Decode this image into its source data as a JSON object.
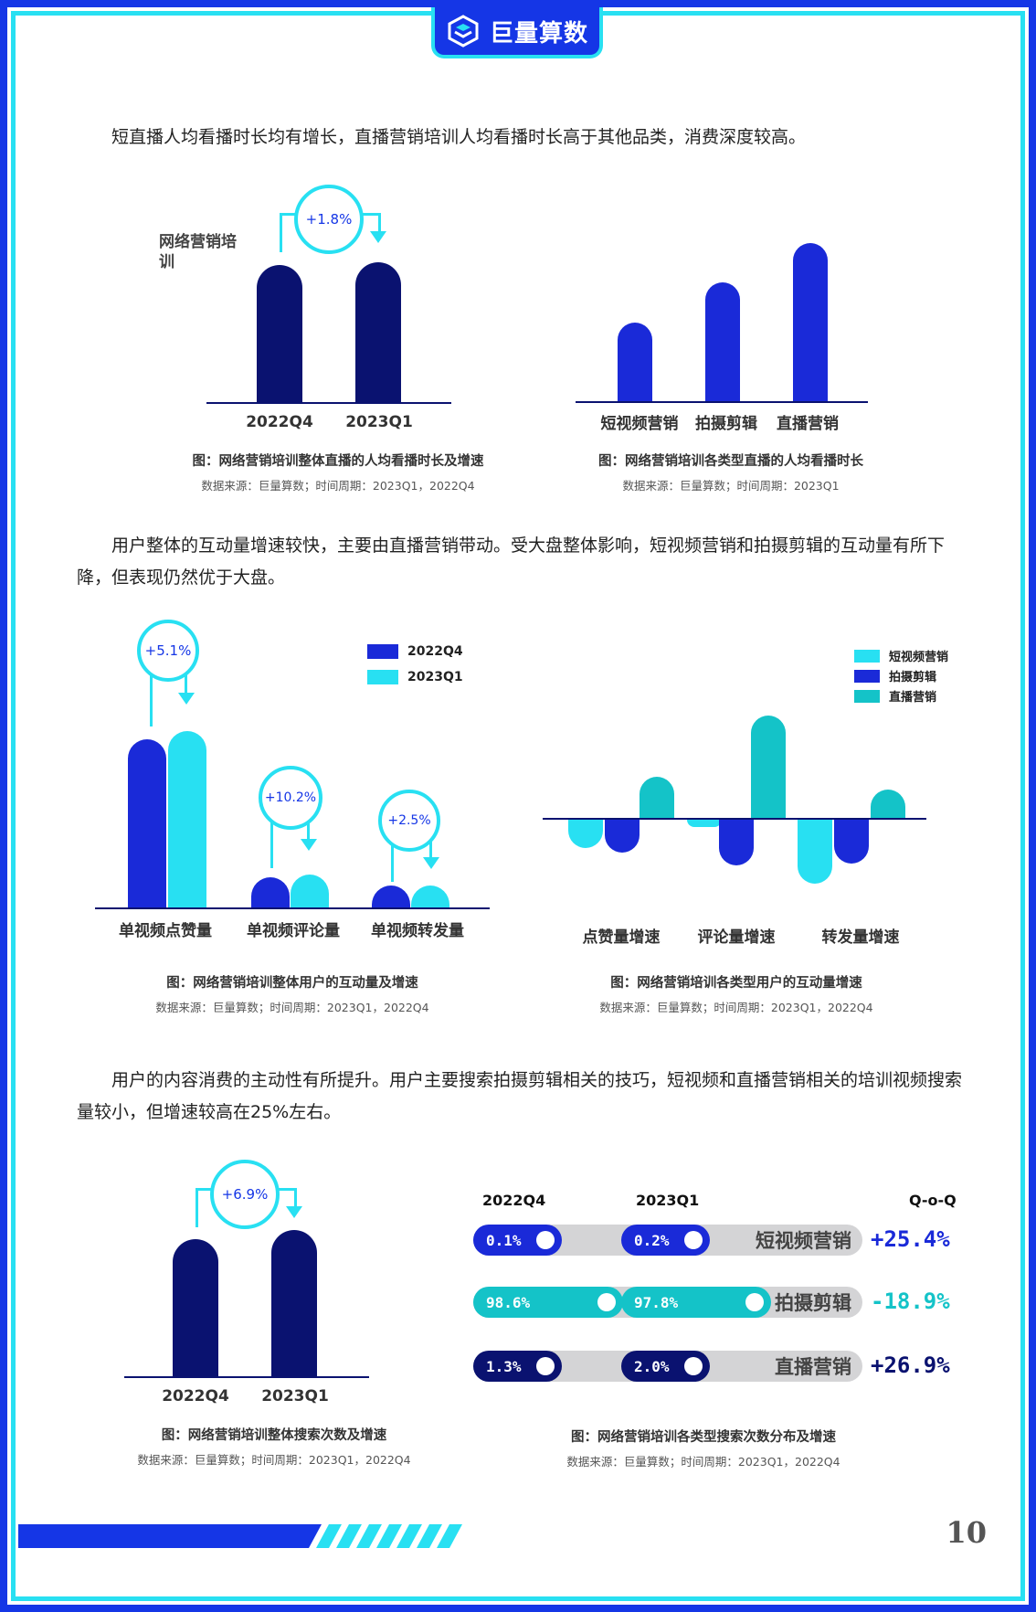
{
  "header": {
    "logo_text": "巨量算数"
  },
  "paragraphs": {
    "p1": "短直播人均看播时长均有增长，直播营销培训人均看播时长高于其他品类，消费深度较高。",
    "p2": "用户整体的互动量增速较快，主要由直播营销带动。受大盘整体影响，短视频营销和拍摄剪辑的互动量有所下降，但表现仍然优于大盘。",
    "p3": "用户的内容消费的主动性有所提升。用户主要搜索拍摄剪辑相关的技巧，短视频和直播营销相关的培训视频搜索量较小，但增速较高在25%左右。"
  },
  "colors": {
    "navy": "#0a1270",
    "blue": "#1a2ad8",
    "cyan": "#28e0f2",
    "teal": "#14c3c8",
    "frame": "#1536e6"
  },
  "chart_data": [
    {
      "id": "fig1",
      "type": "bar",
      "series_label": "网络营销培训",
      "categories": [
        "2022Q4",
        "2023Q1"
      ],
      "values": [
        100,
        101.8
      ],
      "growth_label": "+1.8%",
      "caption": "图：网络营销培训整体直播的人均看播时长及增速",
      "source": "数据来源：巨量算数；时间周期：2023Q1，2022Q4"
    },
    {
      "id": "fig2",
      "type": "bar",
      "categories": [
        "短视频营销",
        "拍摄剪辑",
        "直播营销"
      ],
      "values": [
        55,
        83,
        110
      ],
      "caption": "图：网络营销培训各类型直播的人均看播时长",
      "source": "数据来源：巨量算数；时间周期：2023Q1"
    },
    {
      "id": "fig3",
      "type": "bar",
      "categories": [
        "单视频点赞量",
        "单视频评论量",
        "单视频转发量"
      ],
      "series": [
        {
          "name": "2022Q4",
          "values": [
            100,
            18,
            13
          ]
        },
        {
          "name": "2023Q1",
          "values": [
            105.1,
            19.8,
            13.3
          ]
        }
      ],
      "growth_labels": [
        "+5.1%",
        "+10.2%",
        "+2.5%"
      ],
      "caption": "图：网络营销培训整体用户的互动量及增速",
      "source": "数据来源：巨量算数；时间周期：2023Q1，2022Q4"
    },
    {
      "id": "fig4",
      "type": "bar",
      "categories": [
        "点赞量增速",
        "评论量增速",
        "转发量增速"
      ],
      "series": [
        {
          "name": "短视频营销",
          "values": [
            -22,
            -6,
            -50
          ]
        },
        {
          "name": "拍摄剪辑",
          "values": [
            -26,
            -36,
            -34
          ]
        },
        {
          "name": "直播营销",
          "values": [
            32,
            80,
            22
          ]
        }
      ],
      "caption": "图：网络营销培训各类型用户的互动量增速",
      "source": "数据来源：巨量算数；时间周期：2023Q1，2022Q4"
    },
    {
      "id": "fig5",
      "type": "bar",
      "categories": [
        "2022Q4",
        "2023Q1"
      ],
      "values": [
        100,
        106.9
      ],
      "growth_label": "+6.9%",
      "caption": "图：网络营销培训整体搜索次数及增速",
      "source": "数据来源：巨量算数；时间周期：2023Q1，2022Q4"
    },
    {
      "id": "fig6",
      "type": "table",
      "headers": {
        "col1": "2022Q4",
        "col2": "2023Q1",
        "col3": "Q-o-Q"
      },
      "rows": [
        {
          "name": "短视频营销",
          "q4": "0.1%",
          "q1": "0.2%",
          "qoq": "+25.4%",
          "bar_color": "#1a2ad8",
          "growth_color": "#1a2ad8",
          "fill_q4": 0.24,
          "fill_q1": 0.24
        },
        {
          "name": "拍摄剪辑",
          "q4": "98.6%",
          "q1": "97.8%",
          "qoq": "-18.9%",
          "bar_color": "#14c3c8",
          "growth_color": "#14c3c8",
          "fill_q4": 0.45,
          "fill_q1": 0.45
        },
        {
          "name": "直播营销",
          "q4": "1.3%",
          "q1": "2.0%",
          "qoq": "+26.9%",
          "bar_color": "#0a1270",
          "growth_color": "#0a1270",
          "fill_q4": 0.24,
          "fill_q1": 0.24
        }
      ],
      "caption": "图：网络营销培训各类型搜索次数分布及增速",
      "source": "数据来源：巨量算数；时间周期：2023Q1，2022Q4"
    }
  ],
  "footer": {
    "page_number": "10"
  }
}
